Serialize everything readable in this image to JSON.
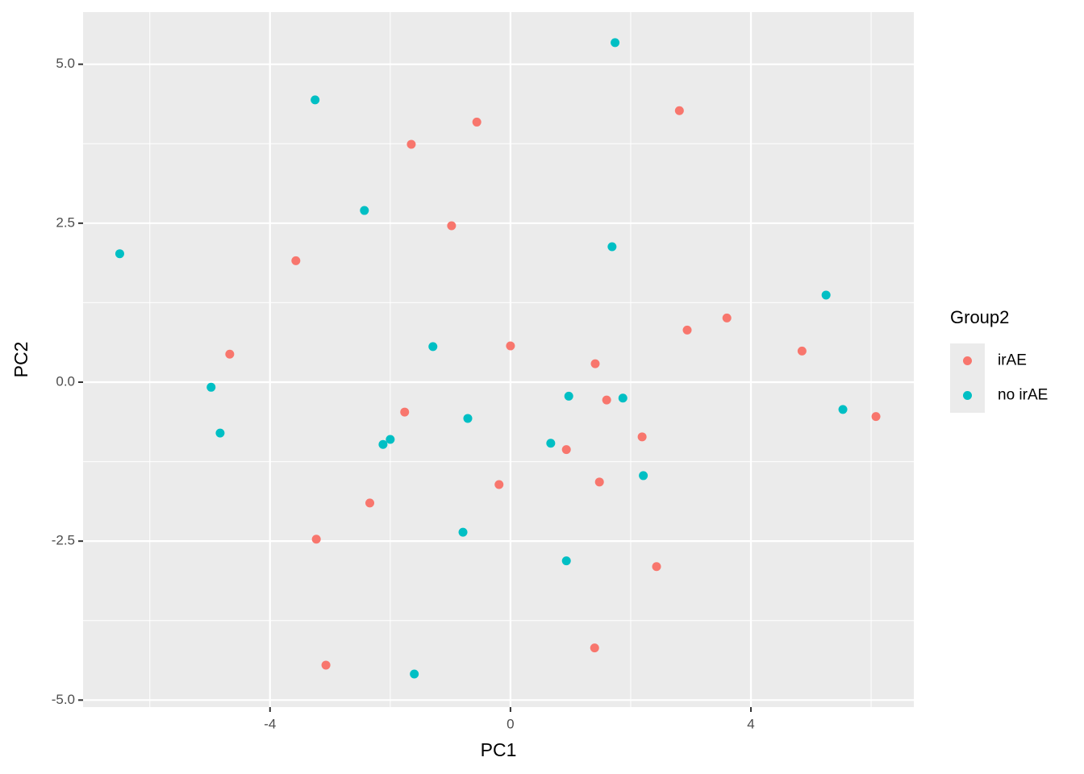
{
  "chart_data": {
    "type": "scatter",
    "xlabel": "PC1",
    "ylabel": "PC2",
    "legend_title": "Group2",
    "legend_position": "right",
    "grid": true,
    "xlim": [
      -7.11,
      6.71
    ],
    "ylim": [
      -5.11,
      5.82
    ],
    "xticks": [
      -4,
      0,
      4
    ],
    "yticks": [
      {
        "value": -5,
        "label": "-5.0"
      },
      {
        "value": -2.5,
        "label": "-2.5"
      },
      {
        "value": 0,
        "label": "0.0"
      },
      {
        "value": 2.5,
        "label": "2.5"
      },
      {
        "value": 5,
        "label": "5.0"
      }
    ],
    "xminor": [
      -6,
      -2,
      2,
      6
    ],
    "yminor": [
      -3.75,
      -1.25,
      1.25,
      3.75
    ],
    "series": [
      {
        "name": "irAE",
        "color": "#F8766D",
        "x": [
          -4.67,
          -3.57,
          -1.65,
          -0.56,
          -0.98,
          2.81,
          2.94,
          3.6,
          4.85,
          6.08,
          0.0,
          1.41,
          1.6,
          -1.76,
          2.19,
          0.93,
          1.48,
          -0.19,
          -2.34,
          -3.23,
          2.43,
          1.4,
          -3.07
        ],
        "values": [
          0.44,
          1.91,
          3.74,
          4.09,
          2.46,
          4.27,
          0.82,
          1.01,
          0.49,
          -0.54,
          0.57,
          0.29,
          -0.28,
          -0.47,
          -0.86,
          -1.06,
          -1.57,
          -1.61,
          -1.9,
          -2.47,
          -2.9,
          -4.18,
          -4.45
        ]
      },
      {
        "name": "no irAE",
        "color": "#00BFC4",
        "x": [
          1.74,
          -3.25,
          -2.43,
          -6.5,
          1.69,
          5.25,
          -1.29,
          -4.98,
          -4.83,
          0.97,
          1.87,
          5.53,
          -0.71,
          -2.0,
          -2.12,
          0.67,
          2.21,
          -0.79,
          0.93,
          -1.6
        ],
        "values": [
          5.34,
          4.44,
          2.7,
          2.02,
          2.13,
          1.37,
          0.56,
          -0.08,
          -0.8,
          -0.22,
          -0.25,
          -0.43,
          -0.57,
          -0.9,
          -0.98,
          -0.96,
          -1.47,
          -2.36,
          -2.81,
          -4.59
        ]
      }
    ]
  }
}
